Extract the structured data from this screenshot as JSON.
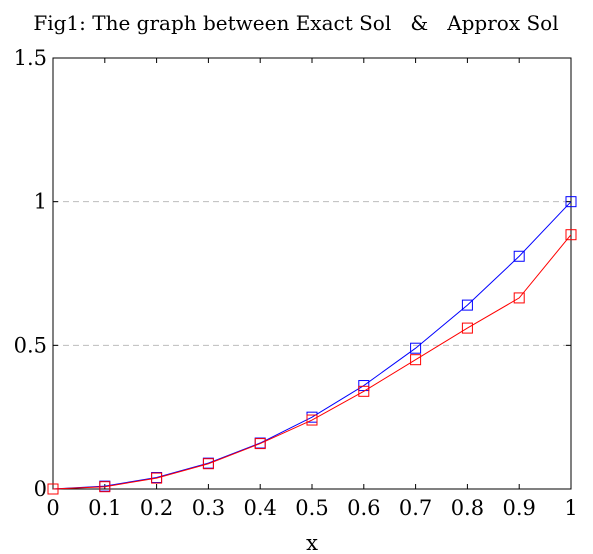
{
  "chart_data": {
    "type": "line",
    "title": "Fig1: The graph between Exact Sol   &   Approx Sol",
    "xlabel": "x",
    "ylabel": "",
    "x": [
      0,
      0.1,
      0.2,
      0.3,
      0.4,
      0.5,
      0.6,
      0.7,
      0.8,
      0.9,
      1
    ],
    "xlim": [
      0,
      1
    ],
    "ylim": [
      0,
      1.5
    ],
    "x_ticks": [
      "0",
      "0.1",
      "0.2",
      "0.3",
      "0.4",
      "0.5",
      "0.6",
      "0.7",
      "0.8",
      "0.9",
      "1"
    ],
    "y_ticks": [
      {
        "value": 0,
        "label": "0"
      },
      {
        "value": 0.5,
        "label": "0.5"
      },
      {
        "value": 1,
        "label": "1"
      },
      {
        "value": 1.5,
        "label": "1.5"
      }
    ],
    "grid": "horizontal dashed at 0.5 and 1",
    "series": [
      {
        "color": "#0000ff",
        "marker": "square",
        "values": [
          0,
          0.01,
          0.04,
          0.09,
          0.16,
          0.25,
          0.36,
          0.49,
          0.64,
          0.81,
          1.0
        ]
      },
      {
        "color": "#ff0000",
        "marker": "square",
        "values": [
          0,
          0.008,
          0.038,
          0.088,
          0.158,
          0.24,
          0.34,
          0.45,
          0.56,
          0.665,
          0.885
        ]
      }
    ]
  }
}
